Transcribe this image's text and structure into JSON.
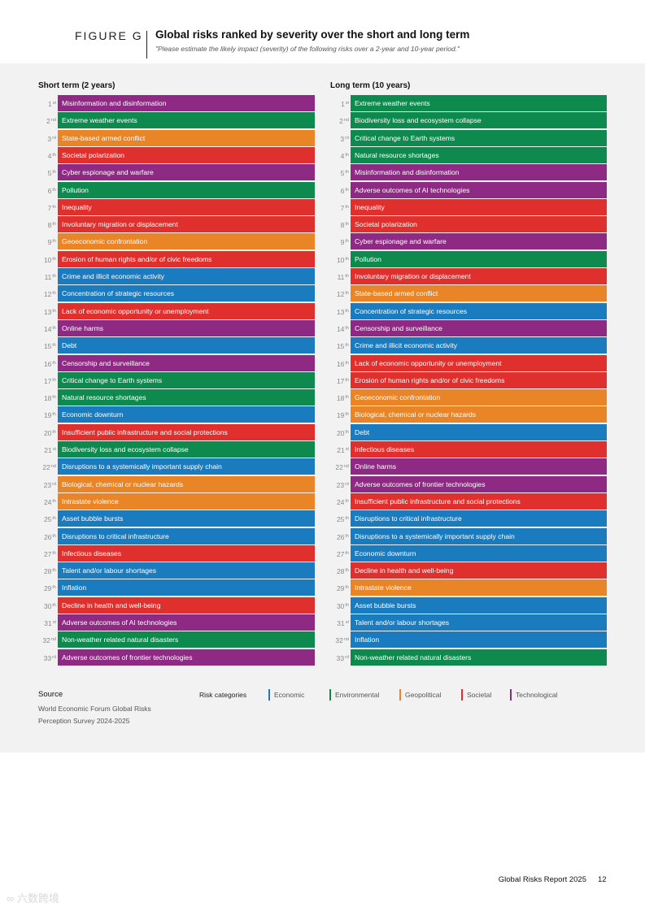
{
  "figure": {
    "label": "FIGURE G",
    "title": "Global risks ranked by severity over the short and long term",
    "subtitle": "\"Please estimate the likely impact (severity) of the following risks over a 2-year and 10-year period.\""
  },
  "colors": {
    "Economic": "#1b7bbf",
    "Environmental": "#0f8a4f",
    "Geopolitical": "#e98527",
    "Societal": "#e0302e",
    "Technological": "#8e2a83"
  },
  "short_term": {
    "title": "Short term (2 years)",
    "items": [
      {
        "rank": "1",
        "suffix": "st",
        "label": "Misinformation and disinformation",
        "category": "Technological"
      },
      {
        "rank": "2",
        "suffix": "nd",
        "label": "Extreme weather events",
        "category": "Environmental"
      },
      {
        "rank": "3",
        "suffix": "rd",
        "label": "State-based armed conflict",
        "category": "Geopolitical"
      },
      {
        "rank": "4",
        "suffix": "th",
        "label": "Societal polarization",
        "category": "Societal"
      },
      {
        "rank": "5",
        "suffix": "th",
        "label": "Cyber espionage and warfare",
        "category": "Technological"
      },
      {
        "rank": "6",
        "suffix": "th",
        "label": "Pollution",
        "category": "Environmental"
      },
      {
        "rank": "7",
        "suffix": "th",
        "label": "Inequality",
        "category": "Societal"
      },
      {
        "rank": "8",
        "suffix": "th",
        "label": "Involuntary migration or displacement",
        "category": "Societal"
      },
      {
        "rank": "9",
        "suffix": "th",
        "label": "Geoeconomic confrontation",
        "category": "Geopolitical"
      },
      {
        "rank": "10",
        "suffix": "th",
        "label": "Erosion of human rights and/or of civic freedoms",
        "category": "Societal"
      },
      {
        "rank": "11",
        "suffix": "th",
        "label": "Crime and illicit economic activity",
        "category": "Economic"
      },
      {
        "rank": "12",
        "suffix": "th",
        "label": "Concentration of strategic resources",
        "category": "Economic"
      },
      {
        "rank": "13",
        "suffix": "th",
        "label": "Lack of economic opportunity or unemployment",
        "category": "Societal"
      },
      {
        "rank": "14",
        "suffix": "th",
        "label": "Online harms",
        "category": "Technological"
      },
      {
        "rank": "15",
        "suffix": "th",
        "label": "Debt",
        "category": "Economic"
      },
      {
        "rank": "16",
        "suffix": "th",
        "label": "Censorship and surveillance",
        "category": "Technological"
      },
      {
        "rank": "17",
        "suffix": "th",
        "label": "Critical change to Earth systems",
        "category": "Environmental"
      },
      {
        "rank": "18",
        "suffix": "th",
        "label": "Natural resource shortages",
        "category": "Environmental"
      },
      {
        "rank": "19",
        "suffix": "th",
        "label": "Economic downturn",
        "category": "Economic"
      },
      {
        "rank": "20",
        "suffix": "th",
        "label": "Insufficient public infrastructure and social protections",
        "category": "Societal"
      },
      {
        "rank": "21",
        "suffix": "st",
        "label": "Biodiversity loss and ecosystem collapse",
        "category": "Environmental"
      },
      {
        "rank": "22",
        "suffix": "nd",
        "label": "Disruptions to a systemically important supply chain",
        "category": "Economic"
      },
      {
        "rank": "23",
        "suffix": "rd",
        "label": "Biological, chemical or nuclear hazards",
        "category": "Geopolitical"
      },
      {
        "rank": "24",
        "suffix": "th",
        "label": "Intrastate violence",
        "category": "Geopolitical"
      },
      {
        "rank": "25",
        "suffix": "th",
        "label": "Asset bubble bursts",
        "category": "Economic"
      },
      {
        "rank": "26",
        "suffix": "th",
        "label": "Disruptions to critical infrastructure",
        "category": "Economic"
      },
      {
        "rank": "27",
        "suffix": "th",
        "label": "Infectious diseases",
        "category": "Societal"
      },
      {
        "rank": "28",
        "suffix": "th",
        "label": "Talent and/or labour shortages",
        "category": "Economic"
      },
      {
        "rank": "29",
        "suffix": "th",
        "label": "Inflation",
        "category": "Economic"
      },
      {
        "rank": "30",
        "suffix": "th",
        "label": "Decline in health and well-being",
        "category": "Societal"
      },
      {
        "rank": "31",
        "suffix": "st",
        "label": "Adverse outcomes of AI technologies",
        "category": "Technological"
      },
      {
        "rank": "32",
        "suffix": "nd",
        "label": "Non-weather related natural disasters",
        "category": "Environmental"
      },
      {
        "rank": "33",
        "suffix": "rd",
        "label": "Adverse outcomes of frontier technologies",
        "category": "Technological"
      }
    ]
  },
  "long_term": {
    "title": "Long term (10 years)",
    "items": [
      {
        "rank": "1",
        "suffix": "st",
        "label": "Extreme weather events",
        "category": "Environmental"
      },
      {
        "rank": "2",
        "suffix": "nd",
        "label": "Biodiversity loss and ecosystem collapse",
        "category": "Environmental"
      },
      {
        "rank": "3",
        "suffix": "rd",
        "label": "Critical change to Earth systems",
        "category": "Environmental"
      },
      {
        "rank": "4",
        "suffix": "th",
        "label": "Natural resource shortages",
        "category": "Environmental"
      },
      {
        "rank": "5",
        "suffix": "th",
        "label": "Misinformation and disinformation",
        "category": "Technological"
      },
      {
        "rank": "6",
        "suffix": "th",
        "label": "Adverse outcomes of AI technologies",
        "category": "Technological"
      },
      {
        "rank": "7",
        "suffix": "th",
        "label": "Inequality",
        "category": "Societal"
      },
      {
        "rank": "8",
        "suffix": "th",
        "label": "Societal polarization",
        "category": "Societal"
      },
      {
        "rank": "9",
        "suffix": "th",
        "label": "Cyber espionage and warfare",
        "category": "Technological"
      },
      {
        "rank": "10",
        "suffix": "th",
        "label": "Pollution",
        "category": "Environmental"
      },
      {
        "rank": "11",
        "suffix": "th",
        "label": "Involuntary migration or displacement",
        "category": "Societal"
      },
      {
        "rank": "12",
        "suffix": "th",
        "label": "State-based armed conflict",
        "category": "Geopolitical"
      },
      {
        "rank": "13",
        "suffix": "th",
        "label": "Concentration of strategic resources",
        "category": "Economic"
      },
      {
        "rank": "14",
        "suffix": "th",
        "label": "Censorship and surveillance",
        "category": "Technological"
      },
      {
        "rank": "15",
        "suffix": "th",
        "label": "Crime and illicit economic activity",
        "category": "Economic"
      },
      {
        "rank": "16",
        "suffix": "th",
        "label": "Lack of economic opportunity or unemployment",
        "category": "Societal"
      },
      {
        "rank": "17",
        "suffix": "th",
        "label": "Erosion of human rights and/or of civic freedoms",
        "category": "Societal"
      },
      {
        "rank": "18",
        "suffix": "th",
        "label": "Geoeconomic confrontation",
        "category": "Geopolitical"
      },
      {
        "rank": "19",
        "suffix": "th",
        "label": "Biological, chemical or nuclear hazards",
        "category": "Geopolitical"
      },
      {
        "rank": "20",
        "suffix": "th",
        "label": "Debt",
        "category": "Economic"
      },
      {
        "rank": "21",
        "suffix": "st",
        "label": "Infectious diseases",
        "category": "Societal"
      },
      {
        "rank": "22",
        "suffix": "nd",
        "label": "Online harms",
        "category": "Technological"
      },
      {
        "rank": "23",
        "suffix": "rd",
        "label": "Adverse outcomes of frontier technologies",
        "category": "Technological"
      },
      {
        "rank": "24",
        "suffix": "th",
        "label": "Insufficient public infrastructure and social protections",
        "category": "Societal"
      },
      {
        "rank": "25",
        "suffix": "th",
        "label": "Disruptions to critical infrastructure",
        "category": "Economic"
      },
      {
        "rank": "26",
        "suffix": "th",
        "label": "Disruptions to a systemically important supply chain",
        "category": "Economic"
      },
      {
        "rank": "27",
        "suffix": "th",
        "label": "Economic downturn",
        "category": "Economic"
      },
      {
        "rank": "28",
        "suffix": "th",
        "label": "Decline in health and well-being",
        "category": "Societal"
      },
      {
        "rank": "29",
        "suffix": "th",
        "label": "Intrastate violence",
        "category": "Geopolitical"
      },
      {
        "rank": "30",
        "suffix": "th",
        "label": "Asset bubble bursts",
        "category": "Economic"
      },
      {
        "rank": "31",
        "suffix": "st",
        "label": "Talent and/or labour shortages",
        "category": "Economic"
      },
      {
        "rank": "32",
        "suffix": "nd",
        "label": "Inflation",
        "category": "Economic"
      },
      {
        "rank": "33",
        "suffix": "rd",
        "label": "Non-weather related natural disasters",
        "category": "Environmental"
      }
    ]
  },
  "source": {
    "label": "Source",
    "text": "World Economic Forum Global Risks Perception Survey 2024-2025"
  },
  "legend": {
    "label": "Risk categories",
    "items": [
      {
        "name": "Economic",
        "category": "Economic"
      },
      {
        "name": "Environmental",
        "category": "Environmental"
      },
      {
        "name": "Geopolitical",
        "category": "Geopolitical"
      },
      {
        "name": "Societal",
        "category": "Societal"
      },
      {
        "name": "Technological",
        "category": "Technological"
      }
    ]
  },
  "footer": {
    "report": "Global Risks Report 2025",
    "page": "12"
  },
  "watermark": {
    "text": "六数跨境"
  }
}
